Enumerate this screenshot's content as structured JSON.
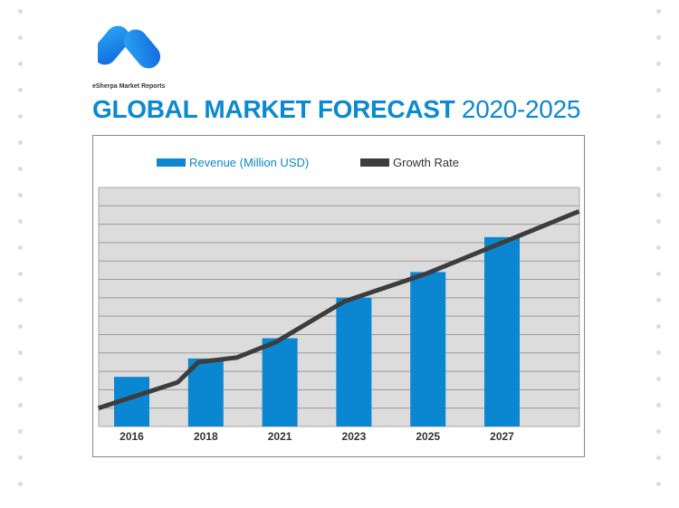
{
  "brand": "eSherpa Market Reports",
  "title_bold": "GLOBAL MARKET FORECAST",
  "title_years": "2020-2025",
  "colors": {
    "accent": "#0a8ad0",
    "bar": "#0a87d0",
    "line": "#3d3d3d",
    "plot_bg": "#dcdcdc"
  },
  "chart_data": {
    "type": "bar",
    "title": "GLOBAL MARKET FORECAST 2020-2025",
    "categories": [
      "2016",
      "2018",
      "2021",
      "2023",
      "2025",
      "2027"
    ],
    "ylim": [
      0,
      13
    ],
    "grid": true,
    "legend_placement": "top",
    "series": [
      {
        "name": "Revenue (Million USD)",
        "type": "bar",
        "values": [
          2.7,
          3.7,
          4.8,
          7.0,
          8.4,
          10.3
        ]
      },
      {
        "name": "Growth Rate",
        "type": "line",
        "points": [
          [
            -0.45,
            1.0
          ],
          [
            0.62,
            2.4
          ],
          [
            0.9,
            3.5
          ],
          [
            1.42,
            3.75
          ],
          [
            1.95,
            4.6
          ],
          [
            2.87,
            6.8
          ],
          [
            3.97,
            8.3
          ],
          [
            6.04,
            11.7
          ]
        ]
      }
    ]
  }
}
